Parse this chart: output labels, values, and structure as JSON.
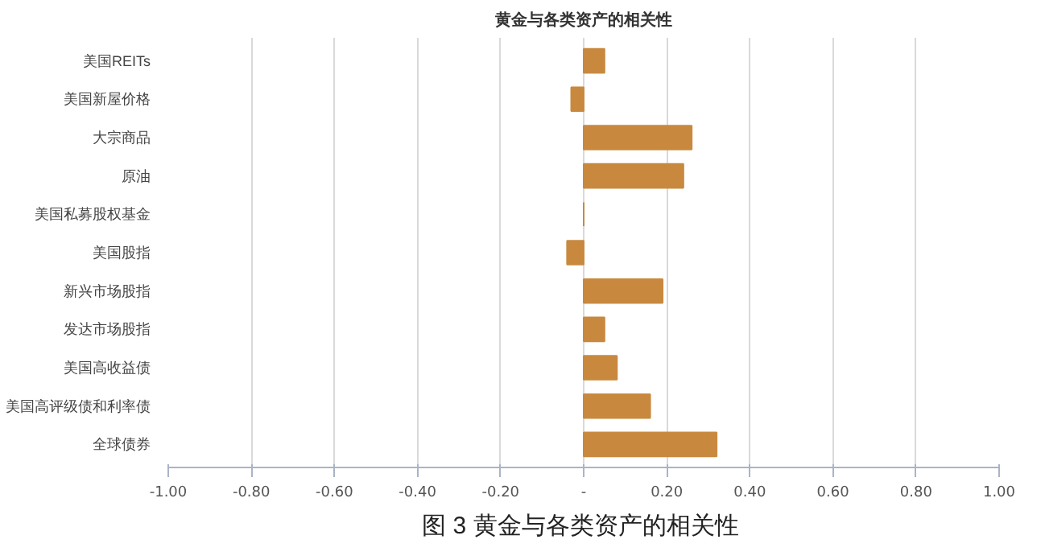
{
  "chart_data": {
    "type": "bar",
    "orientation": "horizontal",
    "title": "黄金与各类资产的相关性",
    "categories": [
      "美国REITs",
      "美国新屋价格",
      "大宗商品",
      "原油",
      "美国私募股权基金",
      "美国股指",
      "新兴市场股指",
      "发达市场股指",
      "美国高收益债",
      "美国高评级债和利率债",
      "全球债券"
    ],
    "values": [
      0.05,
      -0.03,
      0.26,
      0.24,
      0,
      -0.04,
      0.19,
      0.05,
      0.08,
      0.16,
      0.32
    ],
    "color": "#c8893f",
    "xlim": [
      -1.0,
      1.0
    ],
    "xticks": [
      {
        "value": -1.0,
        "label": "-1.00"
      },
      {
        "value": -0.8,
        "label": "-0.80"
      },
      {
        "value": -0.6,
        "label": "-0.60"
      },
      {
        "value": -0.4,
        "label": "-0.40"
      },
      {
        "value": -0.2,
        "label": "-0.20"
      },
      {
        "value": 0,
        "label": "-"
      },
      {
        "value": 0.2,
        "label": "0.20"
      },
      {
        "value": 0.4,
        "label": "0.40"
      },
      {
        "value": 0.6,
        "label": "0.60"
      },
      {
        "value": 0.8,
        "label": "0.80"
      },
      {
        "value": 1.0,
        "label": "1.00"
      }
    ],
    "grid": "x",
    "annotations": [
      "图 3  黄金与各类资产的相关性"
    ]
  }
}
